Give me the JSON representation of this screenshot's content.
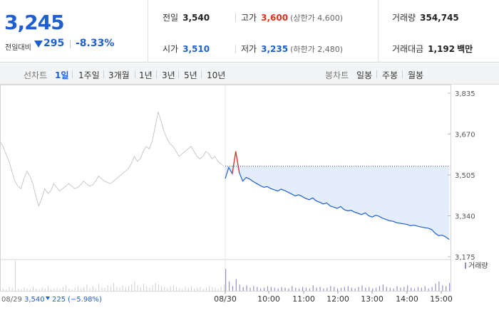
{
  "quote": {
    "price": "3,245",
    "change_label": "전일대비",
    "change": "295",
    "change_rate": "-8.33%",
    "stats": {
      "prev_close": {
        "label": "전일",
        "value": "3,540"
      },
      "high": {
        "label": "고가",
        "value": "3,600",
        "sub": "(상한가 4,600)"
      },
      "volume": {
        "label": "거래량",
        "value": "354,745"
      },
      "open": {
        "label": "시가",
        "value": "3,510"
      },
      "low": {
        "label": "저가",
        "value": "3,235",
        "sub": "(하한가 2,480)"
      },
      "trade_value": {
        "label": "거래대금",
        "value": "1,192",
        "unit": "백만"
      }
    }
  },
  "period_bar": {
    "line_label": "선차트",
    "line_items": [
      "1일",
      "1주일",
      "3개월",
      "1년",
      "3년",
      "5년",
      "10년"
    ],
    "active_index": 0,
    "candle_label": "봉차트",
    "candle_items": [
      "일봉",
      "주봉",
      "월봉"
    ]
  },
  "colors": {
    "accent": "#1e5fd2",
    "up": "#e0301e",
    "prev_day_line": "#c8c8c8",
    "fill": "#e3edfb",
    "volume_bar": "#9b8cc4"
  },
  "chart_data": {
    "type": "line",
    "y_ticks": [
      "3,835",
      "3,670",
      "3,505",
      "3,340",
      "3,175"
    ],
    "ylim": [
      3175,
      3835
    ],
    "x_tick_labels": [
      "08/30",
      "10:00",
      "11:00",
      "12:00",
      "13:00",
      "14:00",
      "15:00"
    ],
    "prev_day_note": {
      "date": "08/29",
      "close": "3,540",
      "change": "225",
      "rate": "(−5.98%)"
    },
    "volume_legend": "거래량",
    "reference_price": 3540,
    "prev_day_series": [
      3640,
      3620,
      3590,
      3560,
      3520,
      3480,
      3460,
      3450,
      3490,
      3520,
      3500,
      3470,
      3420,
      3380,
      3410,
      3450,
      3430,
      3440,
      3470,
      3455,
      3440,
      3450,
      3460,
      3470,
      3460,
      3450,
      3455,
      3465,
      3480,
      3470,
      3460,
      3465,
      3480,
      3500,
      3490,
      3480,
      3475,
      3470,
      3480,
      3490,
      3500,
      3510,
      3520,
      3530,
      3550,
      3580,
      3560,
      3570,
      3600,
      3620,
      3610,
      3640,
      3700,
      3760,
      3720,
      3680,
      3650,
      3630,
      3620,
      3600,
      3580,
      3590,
      3600,
      3610,
      3620,
      3600,
      3580,
      3570,
      3580,
      3600,
      3590,
      3570,
      3580,
      3560,
      3550,
      3540
    ],
    "today_series": [
      3490,
      3535,
      3510,
      3600,
      3515,
      3480,
      3495,
      3488,
      3478,
      3470,
      3462,
      3455,
      3458,
      3450,
      3445,
      3440,
      3448,
      3442,
      3435,
      3428,
      3420,
      3425,
      3418,
      3410,
      3405,
      3412,
      3400,
      3395,
      3388,
      3392,
      3380,
      3375,
      3370,
      3378,
      3365,
      3360,
      3362,
      3355,
      3350,
      3345,
      3352,
      3340,
      3335,
      3342,
      3338,
      3330,
      3325,
      3320,
      3318,
      3312,
      3310,
      3308,
      3305,
      3300,
      3302,
      3298,
      3295,
      3292,
      3290,
      3285,
      3270,
      3260,
      3262,
      3255,
      3245
    ],
    "prev_day_volume": [
      2,
      3,
      2,
      5,
      4,
      38,
      3,
      2,
      4,
      3,
      2,
      5,
      3,
      2,
      4,
      3,
      6,
      2,
      3,
      4,
      3,
      5,
      7,
      3,
      2,
      4,
      6,
      3,
      5,
      8,
      4,
      6,
      3,
      9,
      5,
      4,
      7,
      6,
      10,
      5,
      4,
      7,
      5,
      6,
      8,
      12,
      7,
      5,
      9,
      6,
      4,
      7,
      10,
      8,
      6,
      5,
      4,
      6,
      7,
      5,
      4,
      3,
      5,
      4,
      6,
      3,
      4,
      5,
      3,
      4,
      6,
      5,
      4,
      3,
      5,
      8
    ],
    "today_volume": [
      28,
      12,
      6,
      15,
      8,
      5,
      7,
      4,
      6,
      5,
      3,
      4,
      6,
      5,
      4,
      3,
      5,
      4,
      3,
      6,
      4,
      3,
      5,
      4,
      3,
      7,
      4,
      5,
      3,
      4,
      6,
      5,
      3,
      4,
      5,
      6,
      4,
      3,
      5,
      7,
      4,
      5,
      3,
      4,
      6,
      8,
      5,
      4,
      3,
      6,
      4,
      5,
      7,
      4,
      3,
      5,
      4,
      6,
      3,
      5,
      9,
      12,
      7,
      6,
      10
    ]
  }
}
